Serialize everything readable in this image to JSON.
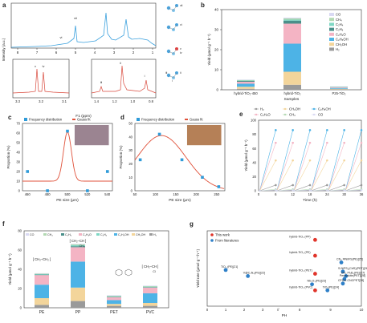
{
  "panels": [
    "a",
    "b",
    "c",
    "d",
    "e",
    "f",
    "g"
  ],
  "colors": {
    "co": "#d9d9f3",
    "ch4": "#b3d9b3",
    "c2h4": "#7fd7c4",
    "c2h6": "#4a8f8a",
    "c2h4o": "#f4b4c4",
    "c2h5oh": "#4db3e6",
    "ch3oh": "#f3d59b",
    "h2": "#9a9a9a",
    "fit": "#e0523b",
    "dist": "#2f9bd9",
    "nmr": "#3aa0dd",
    "nmr_zoom": "#d9493c",
    "g_lit": "#2f80c8",
    "g_this": "#e0342a"
  },
  "chart_data": [
    {
      "panel": "a",
      "type": "line",
      "xlabel": "F1 (ppm)",
      "ylabel": "Intensity (a.u.)",
      "xticks_main": [
        "8",
        "7",
        "6",
        "5",
        "4",
        "3",
        "2",
        "1"
      ],
      "peak_labels_main": [
        "vii",
        "vi"
      ],
      "zoom1": {
        "xticks": [
          "3.3",
          "3.2",
          "3.1"
        ],
        "peak_labels": [
          "v",
          "iv"
        ]
      },
      "zoom2": {
        "xticks": [
          "1.4",
          "1.2",
          "1.0",
          "0.8"
        ],
        "peak_labels": [
          "iii",
          "ii",
          "i"
        ]
      },
      "structure_labels": [
        "vii",
        "vi",
        "v",
        "iv",
        "iii",
        "ii",
        "i"
      ]
    },
    {
      "panel": "b",
      "type": "bar",
      "xlabel": "Samples",
      "ylabel": "Yield (μmol g⁻¹ h⁻¹)",
      "ylim": [
        0,
        40
      ],
      "yticks": [
        "0",
        "10",
        "20",
        "30",
        "40"
      ],
      "categories": [
        "hybrid-TiO₂-450",
        "hybrid-TiO₂",
        "P25-TiO₂"
      ],
      "legend": [
        "CO",
        "CH₄",
        "C₂H₄",
        "C₂H₆",
        "C₂H₄O",
        "C₂H₅OH",
        "CH₃OH",
        "H₂"
      ],
      "series": [
        {
          "name": "H₂",
          "key": "h2",
          "values": [
            0.5,
            2.5,
            0.2
          ]
        },
        {
          "name": "CH₃OH",
          "key": "ch3oh",
          "values": [
            1.0,
            6.5,
            0.3
          ]
        },
        {
          "name": "C₂H₅OH",
          "key": "c2h5oh",
          "values": [
            1.5,
            14.0,
            0.4
          ]
        },
        {
          "name": "C₂H₄O",
          "key": "c2h4o",
          "values": [
            1.0,
            10.0,
            0.3
          ]
        },
        {
          "name": "C₂H₆",
          "key": "c2h6",
          "values": [
            0.4,
            1.5,
            0.15
          ]
        },
        {
          "name": "C₂H₄",
          "key": "c2h4",
          "values": [
            0.2,
            0.5,
            0.1
          ]
        },
        {
          "name": "CH₄",
          "key": "ch4",
          "values": [
            0.3,
            0.6,
            0.1
          ]
        },
        {
          "name": "CO",
          "key": "co",
          "values": [
            0.2,
            0.4,
            0.1
          ]
        }
      ]
    },
    {
      "panel": "c",
      "type": "line",
      "xlabel": "PE size (μm)",
      "ylabel": "Proportion (%)",
      "ylim": [
        0,
        70
      ],
      "xticks": [
        "460",
        "480",
        "500",
        "520",
        "540"
      ],
      "yticks": [
        "0",
        "10",
        "20",
        "30",
        "40",
        "50",
        "60",
        "70"
      ],
      "legend": [
        "Frequency distribution",
        "Gauss fit"
      ],
      "points": [
        [
          460,
          20
        ],
        [
          480,
          0
        ],
        [
          500,
          62
        ],
        [
          520,
          0
        ],
        [
          540,
          20
        ]
      ],
      "fit": {
        "baseline": 10,
        "peak_x": 500,
        "peak_y": 61,
        "sigma": 4
      }
    },
    {
      "panel": "d",
      "type": "line",
      "xlabel": "PE size (μm)",
      "ylabel": "Proportion (%)",
      "ylim": [
        0,
        50
      ],
      "xticks": [
        "50",
        "100",
        "150",
        "200",
        "250"
      ],
      "yticks": [
        "0",
        "10",
        "20",
        "30",
        "40",
        "50"
      ],
      "legend": [
        "Frequency distribution",
        "Gauss fit"
      ],
      "points": [
        [
          63,
          23
        ],
        [
          110,
          42
        ],
        [
          165,
          23
        ],
        [
          215,
          10
        ],
        [
          255,
          3
        ]
      ],
      "fit": {
        "baseline": 0,
        "peak_x": 115,
        "peak_y": 41,
        "sigma": 60
      }
    },
    {
      "panel": "e",
      "type": "line",
      "xlabel": "Time (h)",
      "ylabel": "Yield (μmol g⁻¹ h⁻¹)",
      "ylim": [
        0,
        100
      ],
      "xticks": [
        "0",
        "6",
        "12",
        "18",
        "24",
        "30",
        "36"
      ],
      "yticks": [
        "0",
        "20",
        "40",
        "60",
        "80",
        "100"
      ],
      "legend": [
        "H₂",
        "CH₃OH",
        "C₂H₅OH",
        "C₂H₄O",
        "CH₄",
        "CO"
      ],
      "cycles": 6,
      "cycle_h": 6,
      "end_values": {
        "c2h5oh": 86,
        "c2h4o": 68,
        "ch3oh": 43,
        "h2": 8,
        "ch4": 2,
        "co": 1
      }
    },
    {
      "panel": "f",
      "type": "bar",
      "xlabel": "",
      "ylabel": "Yield (μmol g⁻¹ h⁻¹)",
      "ylim": [
        0,
        80
      ],
      "yticks": [
        "0",
        "20",
        "40",
        "60",
        "80"
      ],
      "categories": [
        "PE",
        "PP",
        "PET",
        "PVC"
      ],
      "legend": [
        "CO",
        "CH₄",
        "C₂H₆",
        "C₂H₄O",
        "C₂H₄",
        "C₂H₅OH",
        "CH₃OH",
        "H₂"
      ],
      "series": [
        {
          "name": "H₂",
          "key": "h2",
          "values": [
            3,
            7,
            2,
            2
          ]
        },
        {
          "name": "CH₃OH",
          "key": "ch3oh",
          "values": [
            7,
            14,
            2,
            3
          ]
        },
        {
          "name": "C₂H₅OH",
          "key": "c2h5oh",
          "values": [
            14,
            27,
            4,
            10
          ]
        },
        {
          "name": "C₂H₄O",
          "key": "c2h4o",
          "values": [
            10,
            15,
            3,
            6
          ]
        },
        {
          "name": "C₂H₆",
          "key": "c2h6",
          "values": [
            0.5,
            1,
            0.5,
            0.5
          ]
        },
        {
          "name": "C₂H₄",
          "key": "c2h4",
          "values": [
            0.5,
            1,
            0.5,
            0.5
          ]
        },
        {
          "name": "CH₄",
          "key": "ch4",
          "values": [
            0.5,
            1,
            0.5,
            0.5
          ]
        },
        {
          "name": "CO",
          "key": "co",
          "values": [
            0.5,
            0.5,
            0.5,
            0.5
          ]
        }
      ],
      "structures": [
        "PE",
        "PP",
        "PET",
        "PVC"
      ],
      "structure_labels": {
        "pe": "CH₂–CH₂",
        "pp_top": "CH₂–CH",
        "pp_sub": "CH₃",
        "pvc_top": "CH₂–CH",
        "pvc_sub": "Cl"
      }
    },
    {
      "panel": "g",
      "type": "scatter",
      "xlabel": "PH",
      "ylabel": "Yield rate (μmol g⁻¹ h⁻¹)",
      "xticks": [
        "0",
        "1",
        "2",
        "3",
        "//",
        "8",
        "9",
        "10"
      ],
      "legend": [
        "This work",
        "From literatures"
      ],
      "points": [
        {
          "group": "this",
          "x": 8.5,
          "y": 0.88,
          "label": "hybrid-TiO₂ (PP)"
        },
        {
          "group": "this",
          "x": 8.5,
          "y": 0.67,
          "label": "hybrid-TiO₂ (PE)"
        },
        {
          "group": "this",
          "x": 8.5,
          "y": 0.43,
          "label": "hybrid-TiO₂ (PET)"
        },
        {
          "group": "this",
          "x": 8.5,
          "y": 0.21,
          "label": "hybrid-TiO₂ (PVC)"
        },
        {
          "group": "lit",
          "x": 1.0,
          "y": 0.48,
          "label": "TiO₂ (PE)[21]"
        },
        {
          "group": "lit",
          "x": 2.2,
          "y": 0.4,
          "label": "V@C₃N₄(PE)[22]"
        },
        {
          "group": "lit",
          "x": 8.4,
          "y": 0.29,
          "label": "Nb₂O₅(PE)[23]"
        },
        {
          "group": "lit",
          "x": 8.9,
          "y": 0.21,
          "label": "TiO₂(PE)[24]"
        },
        {
          "group": "lit",
          "x": 9.35,
          "y": 0.58,
          "label": "CN₄ ΦNi/FS(PE)[25]"
        },
        {
          "group": "lit",
          "x": 9.4,
          "y": 0.46,
          "label": "S-NiPS₂(CdS)(PET)[26]"
        },
        {
          "group": "lit",
          "x": 9.5,
          "y": 0.4,
          "label": "CN₄ PtₓB₄(PE)[27]"
        },
        {
          "group": "lit",
          "x": 9.45,
          "y": 0.36,
          "label": "Perovskite(PET)[28]"
        },
        {
          "group": "lit",
          "x": 9.4,
          "y": 0.3,
          "label": "CFO/x-CNCPET[29]"
        }
      ]
    }
  ]
}
